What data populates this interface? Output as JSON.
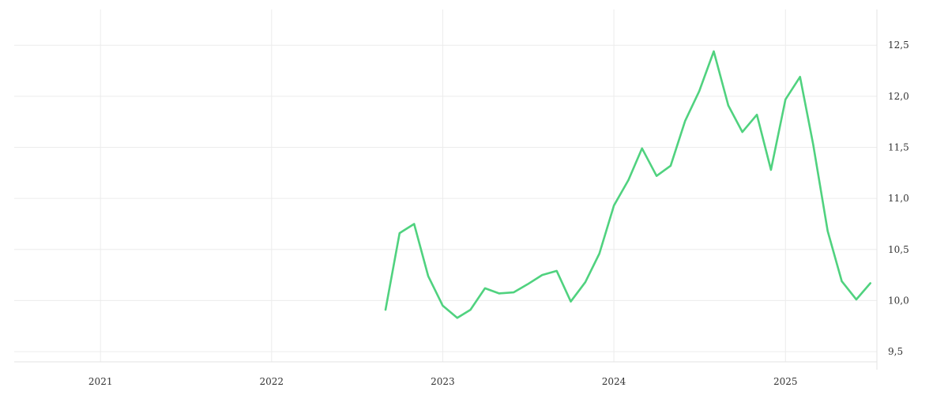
{
  "chart_data": {
    "type": "line",
    "series": [
      {
        "color": "#50d27f",
        "points": [
          {
            "x": "2022-09-01",
            "y": 9.91
          },
          {
            "x": "2022-10-01",
            "y": 10.66
          },
          {
            "x": "2022-11-01",
            "y": 10.75
          },
          {
            "x": "2022-12-01",
            "y": 10.24
          },
          {
            "x": "2023-01-01",
            "y": 9.95
          },
          {
            "x": "2023-02-01",
            "y": 9.83
          },
          {
            "x": "2023-03-01",
            "y": 9.91
          },
          {
            "x": "2023-04-01",
            "y": 10.12
          },
          {
            "x": "2023-05-01",
            "y": 10.07
          },
          {
            "x": "2023-06-01",
            "y": 10.08
          },
          {
            "x": "2023-07-01",
            "y": 10.16
          },
          {
            "x": "2023-08-01",
            "y": 10.25
          },
          {
            "x": "2023-09-01",
            "y": 10.29
          },
          {
            "x": "2023-10-01",
            "y": 9.99
          },
          {
            "x": "2023-11-01",
            "y": 10.18
          },
          {
            "x": "2023-12-01",
            "y": 10.46
          },
          {
            "x": "2024-01-01",
            "y": 10.93
          },
          {
            "x": "2024-02-01",
            "y": 11.18
          },
          {
            "x": "2024-03-01",
            "y": 11.49
          },
          {
            "x": "2024-04-01",
            "y": 11.22
          },
          {
            "x": "2024-05-01",
            "y": 11.32
          },
          {
            "x": "2024-06-01",
            "y": 11.76
          },
          {
            "x": "2024-07-01",
            "y": 12.05
          },
          {
            "x": "2024-08-01",
            "y": 12.44
          },
          {
            "x": "2024-09-01",
            "y": 11.91
          },
          {
            "x": "2024-10-01",
            "y": 11.65
          },
          {
            "x": "2024-11-01",
            "y": 11.82
          },
          {
            "x": "2024-12-01",
            "y": 11.28
          },
          {
            "x": "2025-01-01",
            "y": 11.97
          },
          {
            "x": "2025-02-01",
            "y": 12.19
          },
          {
            "x": "2025-03-01",
            "y": 11.53
          },
          {
            "x": "2025-04-01",
            "y": 10.68
          },
          {
            "x": "2025-05-01",
            "y": 10.19
          },
          {
            "x": "2025-06-01",
            "y": 10.01
          },
          {
            "x": "2025-07-01",
            "y": 10.17
          }
        ]
      }
    ],
    "x_axis": {
      "range": [
        "2020-07-01",
        "2025-07-15"
      ],
      "ticks": [
        {
          "value": "2021-01-01",
          "label": "2021"
        },
        {
          "value": "2022-01-01",
          "label": "2022"
        },
        {
          "value": "2023-01-01",
          "label": "2023"
        },
        {
          "value": "2024-01-01",
          "label": "2024"
        },
        {
          "value": "2025-01-01",
          "label": "2025"
        }
      ]
    },
    "y_axis": {
      "position": "right",
      "range": [
        9.4,
        12.85
      ],
      "ticks": [
        {
          "value": 9.5,
          "label": "9,5"
        },
        {
          "value": 10.0,
          "label": "10,0"
        },
        {
          "value": 10.5,
          "label": "10,5"
        },
        {
          "value": 11.0,
          "label": "11,0"
        },
        {
          "value": 11.5,
          "label": "11,5"
        },
        {
          "value": 12.0,
          "label": "12,0"
        },
        {
          "value": 12.5,
          "label": "12,5"
        }
      ]
    },
    "grid": true,
    "legend": false
  }
}
